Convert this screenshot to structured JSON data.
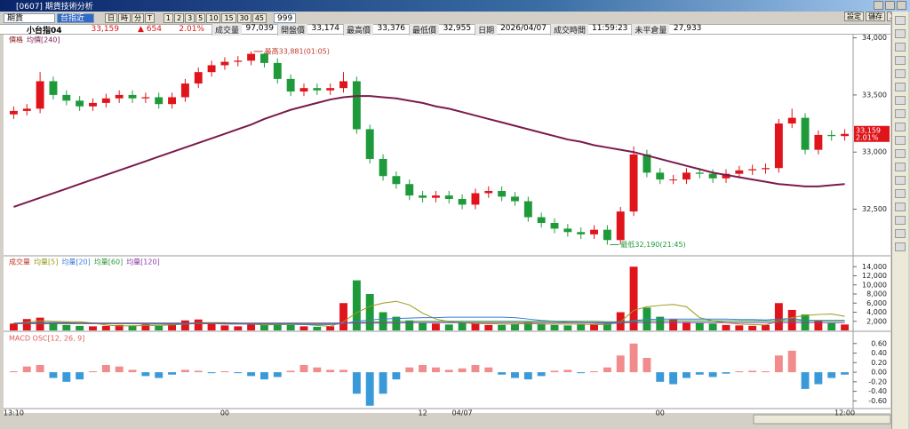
{
  "window": {
    "title": "[0607] 期貨技術分析",
    "buttons": [
      "設定",
      "儲存",
      "工具"
    ]
  },
  "toolbar": {
    "market": "期貨",
    "symbol": "台指近",
    "periods": [
      "日",
      "時",
      "分",
      "T"
    ],
    "intervals": [
      "1",
      "2",
      "3",
      "5",
      "10",
      "15",
      "30",
      "45"
    ],
    "count": "999"
  },
  "quote": {
    "name": "小台指04",
    "last": "33,159",
    "change": "▲ 654",
    "change_pct": "2.01%",
    "fields": [
      {
        "label": "成交量",
        "value": "97,039"
      },
      {
        "label": "開盤價",
        "value": "33,174"
      },
      {
        "label": "最高價",
        "value": "33,376"
      },
      {
        "label": "最低價",
        "value": "32,955"
      },
      {
        "label": "日期",
        "value": "2026/04/07"
      },
      {
        "label": "成交時間",
        "value": "11:59:23"
      },
      {
        "label": "未平倉量",
        "value": "27,933"
      }
    ]
  },
  "chart_data": [
    {
      "type": "candlestick",
      "categories": [
        "13:10",
        null,
        null,
        null,
        null,
        null,
        null,
        null,
        null,
        null,
        null,
        null,
        null,
        null,
        null,
        null,
        "00",
        null,
        null,
        null,
        null,
        null,
        null,
        null,
        null,
        null,
        null,
        null,
        null,
        null,
        null,
        "12",
        null,
        null,
        "04/07",
        null,
        null,
        null,
        null,
        null,
        null,
        null,
        null,
        null,
        null,
        null,
        null,
        null,
        null,
        "00",
        null,
        null,
        null,
        null,
        null,
        null,
        null,
        null,
        null,
        null,
        null,
        null,
        null,
        "12:00"
      ],
      "series": [
        {
          "name": "價格",
          "color": "#8b1a1a",
          "up_color": "#e0151b",
          "down_color": "#1f9a3a",
          "open": [
            33330,
            33360,
            33380,
            33620,
            33500,
            33450,
            33400,
            33430,
            33470,
            33500,
            33470,
            33480,
            33420,
            33480,
            33600,
            33700,
            33760,
            33790,
            33800,
            33860,
            33780,
            33640,
            33530,
            33560,
            33540,
            33560,
            33620,
            33200,
            32940,
            32790,
            32720,
            32620,
            32600,
            32620,
            32590,
            32540,
            32640,
            32660,
            32610,
            32570,
            32430,
            32380,
            32330,
            32300,
            32280,
            32320,
            32230,
            32480,
            32980,
            32820,
            32760,
            32760,
            32820,
            32810,
            32770,
            32810,
            32840,
            32850,
            32860,
            33250,
            33300,
            33020,
            33150,
            33140
          ],
          "high": [
            33400,
            33420,
            33700,
            33660,
            33540,
            33490,
            33470,
            33510,
            33540,
            33540,
            33520,
            33520,
            33520,
            33640,
            33740,
            33800,
            33830,
            33840,
            33881,
            33870,
            33820,
            33680,
            33600,
            33600,
            33600,
            33700,
            33660,
            33240,
            32980,
            32830,
            32760,
            32660,
            32660,
            32660,
            32630,
            32680,
            32700,
            32700,
            32650,
            32610,
            32470,
            32420,
            32370,
            32340,
            32360,
            32360,
            32520,
            33050,
            33020,
            32860,
            32800,
            32860,
            32860,
            32850,
            32850,
            32880,
            32890,
            32900,
            33290,
            33380,
            33340,
            33190,
            33190,
            33200
          ],
          "low": [
            33290,
            33320,
            33340,
            33460,
            33410,
            33360,
            33360,
            33390,
            33430,
            33430,
            33430,
            33380,
            33380,
            33440,
            33560,
            33660,
            33720,
            33750,
            33760,
            33740,
            33600,
            33490,
            33490,
            33500,
            33500,
            33520,
            33160,
            32900,
            32750,
            32680,
            32580,
            32560,
            32560,
            32550,
            32500,
            32500,
            32600,
            32570,
            32530,
            32390,
            32340,
            32290,
            32260,
            32240,
            32240,
            32190,
            32190,
            32440,
            32780,
            32720,
            32720,
            32720,
            32770,
            32730,
            32730,
            32770,
            32800,
            32810,
            32820,
            33210,
            32980,
            32980,
            33100,
            33100
          ],
          "close": [
            33360,
            33380,
            33620,
            33500,
            33450,
            33400,
            33430,
            33470,
            33500,
            33470,
            33480,
            33420,
            33480,
            33600,
            33700,
            33760,
            33790,
            33800,
            33860,
            33780,
            33640,
            33530,
            33560,
            33540,
            33560,
            33620,
            33200,
            32940,
            32790,
            32720,
            32620,
            32600,
            32620,
            32590,
            32540,
            32640,
            32660,
            32610,
            32570,
            32430,
            32380,
            32330,
            32300,
            32280,
            32320,
            32230,
            32480,
            32980,
            32820,
            32760,
            32760,
            32820,
            32810,
            32770,
            32810,
            32840,
            32850,
            32860,
            33250,
            33300,
            33020,
            33150,
            33140,
            33159
          ]
        },
        {
          "name": "均價[240]",
          "color": "#7a1b4d",
          "values": [
            32520,
            32560,
            32600,
            32640,
            32680,
            32720,
            32760,
            32800,
            32840,
            32880,
            32920,
            32960,
            33000,
            33040,
            33080,
            33120,
            33160,
            33200,
            33240,
            33290,
            33330,
            33370,
            33400,
            33430,
            33460,
            33480,
            33490,
            33490,
            33480,
            33470,
            33450,
            33430,
            33400,
            33380,
            33350,
            33320,
            33290,
            33260,
            33230,
            33200,
            33170,
            33140,
            33110,
            33090,
            33060,
            33040,
            33020,
            33000,
            32970,
            32940,
            32910,
            32880,
            32850,
            32820,
            32800,
            32780,
            32760,
            32740,
            32720,
            32710,
            32700,
            32700,
            32710,
            32720
          ]
        }
      ],
      "annotations": [
        {
          "text": "最高33,881(01:05)",
          "value": 33881,
          "color": "#c0392b"
        },
        {
          "text": "最低32,190(21:45)",
          "value": 32190,
          "color": "#1f9a3a"
        }
      ],
      "ylim": [
        32100,
        34020
      ],
      "yticks": [
        {
          "value": 32500,
          "label": "32,500"
        },
        {
          "value": 33000,
          "label": "33,000"
        },
        {
          "value": 33500,
          "label": "33,500"
        },
        {
          "value": 34000,
          "label": "34,000"
        }
      ]
    },
    {
      "type": "bar",
      "series": [
        {
          "name": "成交量",
          "type": "bar",
          "color": "#c0392b",
          "up_color": "#e0151b",
          "down_color": "#1f9a3a",
          "values": [
            1500,
            2500,
            2800,
            1800,
            1200,
            1000,
            900,
            1000,
            1200,
            1100,
            1300,
            1000,
            1600,
            2200,
            2400,
            1500,
            1100,
            900,
            1400,
            1300,
            1600,
            1200,
            900,
            800,
            900,
            6000,
            11000,
            8000,
            4000,
            3000,
            2200,
            1600,
            1500,
            1300,
            1700,
            1500,
            1200,
            1200,
            1400,
            1800,
            1500,
            1200,
            1100,
            1300,
            1400,
            1600,
            4000,
            14000,
            5000,
            3000,
            2400,
            1800,
            1600,
            1500,
            1200,
            1100,
            1000,
            1200,
            6000,
            4500,
            3500,
            2200,
            1600,
            1300
          ]
        },
        {
          "name": "均量[5]",
          "type": "line",
          "color": "#9a9a1a",
          "values": [
            1500,
            1800,
            2100,
            2000,
            1900,
            1900,
            1600,
            1200,
            1000,
            1000,
            1100,
            1100,
            1200,
            1400,
            1700,
            1700,
            1700,
            1600,
            1400,
            1200,
            1300,
            1300,
            1300,
            1100,
            900,
            1900,
            3900,
            5300,
            6000,
            6400,
            5600,
            3800,
            2500,
            1900,
            1700,
            1500,
            1500,
            1400,
            1400,
            1500,
            1400,
            1400,
            1400,
            1400,
            1300,
            1300,
            1900,
            4400,
            5200,
            5500,
            5700,
            5200,
            2800,
            2100,
            1700,
            1400,
            1300,
            1200,
            2100,
            2800,
            3300,
            3500,
            3600,
            3100
          ]
        },
        {
          "name": "均量[20]",
          "type": "line",
          "color": "#3a7bd5",
          "values": [
            1500,
            1600,
            1700,
            1700,
            1700,
            1600,
            1600,
            1500,
            1500,
            1500,
            1400,
            1400,
            1400,
            1400,
            1500,
            1500,
            1400,
            1400,
            1400,
            1400,
            1400,
            1400,
            1300,
            1300,
            1300,
            1500,
            2000,
            2300,
            2500,
            2600,
            2700,
            2800,
            2800,
            2900,
            2900,
            2900,
            2900,
            2900,
            2800,
            2500,
            2200,
            2000,
            1800,
            1700,
            1600,
            1500,
            1600,
            2200,
            2400,
            2500,
            2500,
            2500,
            2500,
            2500,
            2500,
            2400,
            2400,
            2300,
            2500,
            2600,
            2200,
            2200,
            2200,
            2200
          ]
        },
        {
          "name": "均量[60]",
          "type": "line",
          "color": "#2e9a3a",
          "values": [
            1500,
            1500,
            1500,
            1500,
            1500,
            1500,
            1500,
            1500,
            1500,
            1500,
            1500,
            1500,
            1500,
            1500,
            1500,
            1500,
            1500,
            1500,
            1500,
            1500,
            1500,
            1500,
            1500,
            1500,
            1500,
            1600,
            1700,
            1800,
            1900,
            1900,
            2000,
            2000,
            2000,
            2000,
            2000,
            2000,
            2000,
            2000,
            2000,
            2000,
            2000,
            2000,
            2000,
            2000,
            2000,
            1900,
            1900,
            2000,
            2100,
            2100,
            2100,
            2100,
            2100,
            2100,
            2100,
            2100,
            2100,
            2100,
            2100,
            2100,
            2100,
            2100,
            2100,
            2100
          ]
        },
        {
          "name": "均量[120]",
          "type": "line",
          "color": "#8a3aa8",
          "values": [
            1600,
            1600,
            1600,
            1600,
            1600,
            1600,
            1600,
            1600,
            1600,
            1600,
            1600,
            1600,
            1600,
            1600,
            1600,
            1600,
            1600,
            1600,
            1600,
            1600,
            1600,
            1600,
            1600,
            1600,
            1600,
            1600,
            1600,
            1600,
            1600,
            1600,
            1700,
            1700,
            1700,
            1700,
            1700,
            1700,
            1700,
            1700,
            1700,
            1700,
            1700,
            1700,
            1700,
            1700,
            1700,
            1700,
            1700,
            1700,
            1700,
            1700,
            1700,
            1700,
            1700,
            1700,
            1700,
            1700,
            1700,
            1700,
            1700,
            1700,
            1700,
            1700,
            1700,
            1700
          ]
        }
      ],
      "ylim": [
        0,
        16000
      ],
      "yticks": [
        {
          "value": 2000,
          "label": "2,000"
        },
        {
          "value": 4000,
          "label": "4,000"
        },
        {
          "value": 6000,
          "label": "6,000"
        },
        {
          "value": 8000,
          "label": "8,000"
        },
        {
          "value": 10000,
          "label": "10,000"
        },
        {
          "value": 12000,
          "label": "12,000"
        },
        {
          "value": 14000,
          "label": "14,000"
        }
      ]
    },
    {
      "type": "bar",
      "series": [
        {
          "name": "MACD OSC[12, 26, 9]",
          "type": "bar",
          "color": "#e05a5a",
          "up_color": "#f28b8b",
          "down_color": "#3a9ad9",
          "values": [
            0.02,
            0.12,
            0.15,
            -0.12,
            -0.2,
            -0.15,
            0.02,
            0.15,
            0.12,
            0.05,
            -0.08,
            -0.12,
            -0.05,
            0.05,
            0.03,
            -0.02,
            0.02,
            -0.02,
            -0.08,
            -0.15,
            -0.1,
            0.03,
            0.15,
            0.1,
            0.05,
            0.05,
            -0.45,
            -0.7,
            -0.45,
            -0.15,
            0.1,
            0.15,
            0.1,
            0.05,
            0.08,
            0.15,
            0.1,
            -0.05,
            -0.12,
            -0.15,
            -0.08,
            0.03,
            0.05,
            -0.02,
            0.02,
            0.1,
            0.35,
            0.6,
            0.3,
            -0.2,
            -0.25,
            -0.12,
            -0.05,
            -0.1,
            -0.03,
            0.02,
            0.03,
            0.02,
            0.35,
            0.45,
            -0.35,
            -0.25,
            -0.12,
            -0.05
          ]
        }
      ],
      "ylim": [
        -0.76,
        0.8
      ],
      "yticks": [
        {
          "value": -0.6,
          "label": "-0.60"
        },
        {
          "value": -0.4,
          "label": "-0.40"
        },
        {
          "value": -0.2,
          "label": "-0.20"
        },
        {
          "value": 0,
          "label": "0.00"
        },
        {
          "value": 0.2,
          "label": "0.20"
        },
        {
          "value": 0.4,
          "label": "0.40"
        },
        {
          "value": 0.6,
          "label": "0.60"
        }
      ]
    }
  ]
}
